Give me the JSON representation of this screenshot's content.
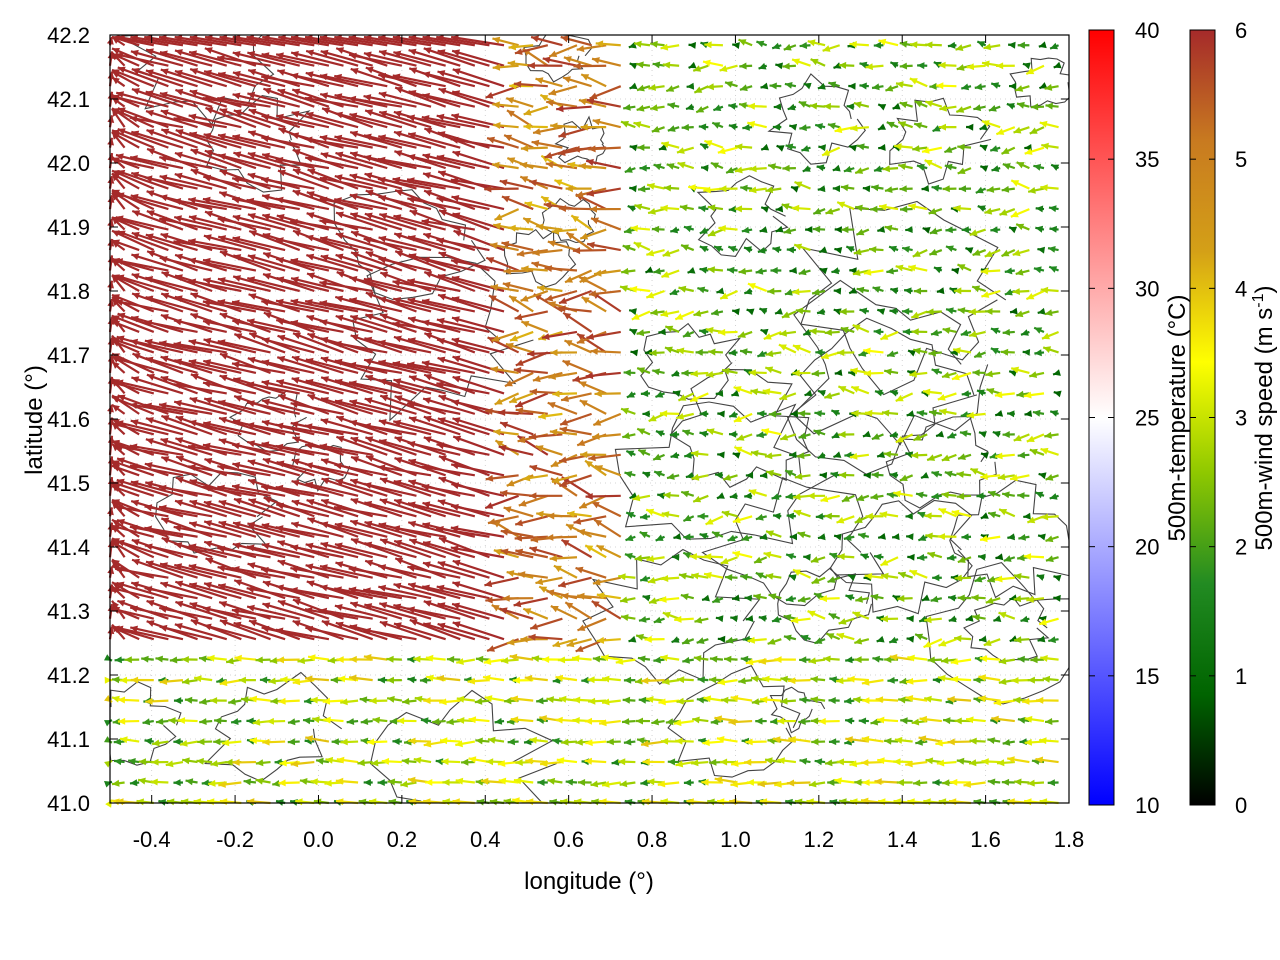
{
  "chart_data": {
    "type": "vector-field",
    "xlabel": "longitude (°)",
    "ylabel": "latitude (°)",
    "xlim": [
      -0.5,
      1.8
    ],
    "ylim": [
      41.0,
      42.2
    ],
    "x_ticks": [
      "-0.4",
      "-0.2",
      "0.0",
      "0.2",
      "0.4",
      "0.6",
      "0.8",
      "1.0",
      "1.2",
      "1.4",
      "1.6",
      "1.8"
    ],
    "y_ticks": [
      "41.0",
      "41.1",
      "41.2",
      "41.3",
      "41.4",
      "41.5",
      "41.6",
      "41.7",
      "41.8",
      "41.9",
      "42.0",
      "42.1",
      "42.2"
    ],
    "grid": true,
    "colorbars": [
      {
        "label": "500m-temperature (°C)",
        "range": [
          10,
          40
        ],
        "ticks": [
          "10",
          "15",
          "20",
          "25",
          "30",
          "35",
          "40"
        ],
        "colors": [
          "#0000ff",
          "#ffffff",
          "#ff0000"
        ]
      },
      {
        "label": "500m-wind speed (m s",
        "label_sup": "-1",
        "label_end": ")",
        "range": [
          0,
          6
        ],
        "ticks": [
          "0",
          "1",
          "2",
          "3",
          "4",
          "5",
          "6"
        ],
        "colors": [
          "#000000",
          "#006400",
          "#228b22",
          "#8fc800",
          "#ffff00",
          "#d4a017",
          "#c87a20",
          "#a52a2a"
        ]
      }
    ],
    "wind_field_regions": [
      {
        "region": "west (lon -0.5 to 0.6)",
        "speed": 6,
        "direction_deg": 285
      },
      {
        "region": "center (lon 0.4 to 0.7)",
        "speed": 5,
        "direction_deg": 280
      },
      {
        "region": "east (lon 0.8 to 1.8)",
        "speed": 2,
        "direction_deg": 270
      },
      {
        "region": "south (lat 41.0 to 41.25)",
        "speed": 2.5,
        "direction_deg": 270
      }
    ]
  }
}
